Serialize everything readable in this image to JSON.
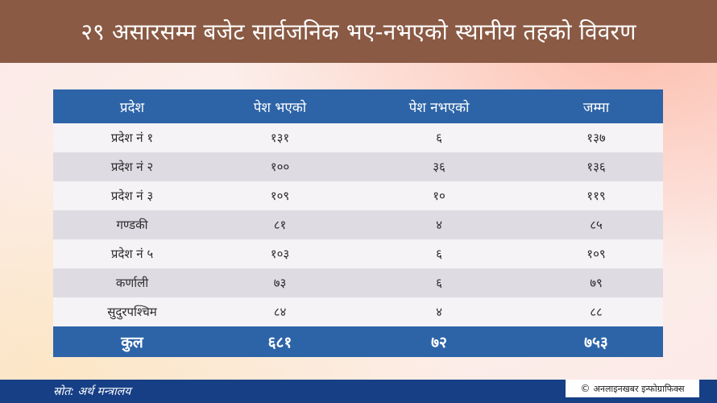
{
  "title": "२९ असारसम्म बजेट सार्वजनिक भए-नभएको स्थानीय तहको विवरण",
  "table": {
    "headers": [
      "प्रदेश",
      "पेश भएको",
      "पेश नभएको",
      "जम्मा"
    ],
    "rows": [
      [
        "प्रदेश नं १",
        "१३१",
        "६",
        "१३७"
      ],
      [
        "प्रदेश नं २",
        "१००",
        "३६",
        "१३६"
      ],
      [
        "प्रदेश नं ३",
        "१०९",
        "१०",
        "११९"
      ],
      [
        "गण्डकी",
        "८१",
        "४",
        "८५"
      ],
      [
        "प्रदेश नं ५",
        "१०३",
        "६",
        "१०९"
      ],
      [
        "कर्णाली",
        "७३",
        "६",
        "७९"
      ],
      [
        "सुदुरपश्चिम",
        "८४",
        "४",
        "८८"
      ]
    ],
    "total": [
      "कुल",
      "६८१",
      "७२",
      "७५३"
    ]
  },
  "footer": {
    "source": "स्रोत: अर्थ मन्त्रालय",
    "copyright_symbol": "©",
    "credit": "अनलाइनखबर इन्फोग्राफिक्स"
  },
  "colors": {
    "title_bar": "#8a5a44",
    "table_header": "#2d64a8",
    "row_light": "#f6f3f6",
    "row_dark": "#dedbe3",
    "footer_bar": "#163f86"
  }
}
